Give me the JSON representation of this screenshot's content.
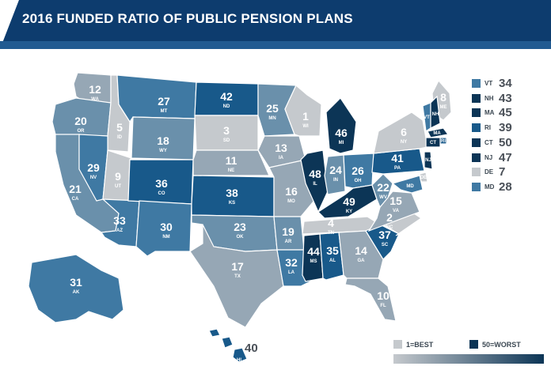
{
  "title": "2016 FUNDED RATIO OF PUBLIC PENSION PLANS",
  "colors": {
    "header_bg": "#0d3c6e",
    "best": "#c5c9cd",
    "worst": "#0c3556",
    "scale": [
      "#c5c9cd",
      "#96a7b5",
      "#6a90ab",
      "#3f79a3",
      "#18598a",
      "#0c3556"
    ]
  },
  "states": [
    {
      "abbr": "WA",
      "rank": 12
    },
    {
      "abbr": "OR",
      "rank": 20
    },
    {
      "abbr": "CA",
      "rank": 21
    },
    {
      "abbr": "ID",
      "rank": 5
    },
    {
      "abbr": "NV",
      "rank": 29
    },
    {
      "abbr": "MT",
      "rank": 27
    },
    {
      "abbr": "WY",
      "rank": 18
    },
    {
      "abbr": "UT",
      "rank": 9
    },
    {
      "abbr": "AZ",
      "rank": 33
    },
    {
      "abbr": "CO",
      "rank": 36
    },
    {
      "abbr": "NM",
      "rank": 30
    },
    {
      "abbr": "ND",
      "rank": 42
    },
    {
      "abbr": "SD",
      "rank": 3
    },
    {
      "abbr": "NE",
      "rank": 11
    },
    {
      "abbr": "KS",
      "rank": 38
    },
    {
      "abbr": "OK",
      "rank": 23
    },
    {
      "abbr": "TX",
      "rank": 17
    },
    {
      "abbr": "MN",
      "rank": 25
    },
    {
      "abbr": "IA",
      "rank": 13
    },
    {
      "abbr": "MO",
      "rank": 16
    },
    {
      "abbr": "AR",
      "rank": 19
    },
    {
      "abbr": "LA",
      "rank": 32
    },
    {
      "abbr": "WI",
      "rank": 1
    },
    {
      "abbr": "IL",
      "rank": 48
    },
    {
      "abbr": "MI",
      "rank": 46
    },
    {
      "abbr": "IN",
      "rank": 24
    },
    {
      "abbr": "OH",
      "rank": 26
    },
    {
      "abbr": "KY",
      "rank": 49
    },
    {
      "abbr": "TN",
      "rank": 4
    },
    {
      "abbr": "MS",
      "rank": 44
    },
    {
      "abbr": "AL",
      "rank": 35
    },
    {
      "abbr": "GA",
      "rank": 14
    },
    {
      "abbr": "FL",
      "rank": 10
    },
    {
      "abbr": "SC",
      "rank": 37
    },
    {
      "abbr": "NC",
      "rank": 2
    },
    {
      "abbr": "VA",
      "rank": 15
    },
    {
      "abbr": "WV",
      "rank": 22
    },
    {
      "abbr": "PA",
      "rank": 41
    },
    {
      "abbr": "NY",
      "rank": 6
    },
    {
      "abbr": "ME",
      "rank": 8
    },
    {
      "abbr": "AK",
      "rank": 31
    },
    {
      "abbr": "HI",
      "rank": 40
    },
    {
      "abbr": "VT",
      "rank": 34
    },
    {
      "abbr": "NH",
      "rank": 43
    },
    {
      "abbr": "MA",
      "rank": 45
    },
    {
      "abbr": "RI",
      "rank": 39
    },
    {
      "abbr": "CT",
      "rank": 50
    },
    {
      "abbr": "NJ",
      "rank": 47
    },
    {
      "abbr": "DE",
      "rank": 7
    },
    {
      "abbr": "MD",
      "rank": 28
    }
  ],
  "northeast_list": [
    {
      "abbr": "VT",
      "rank": "34"
    },
    {
      "abbr": "NH",
      "rank": "43"
    },
    {
      "abbr": "MA",
      "rank": "45"
    },
    {
      "abbr": "RI",
      "rank": "39"
    },
    {
      "abbr": "CT",
      "rank": "50"
    },
    {
      "abbr": "NJ",
      "rank": "47"
    },
    {
      "abbr": "DE",
      "rank": "7"
    },
    {
      "abbr": "MD",
      "rank": "28"
    }
  ],
  "hawaii_rank": "40",
  "legend": {
    "best_label": "1=BEST",
    "worst_label": "50=WORST"
  }
}
